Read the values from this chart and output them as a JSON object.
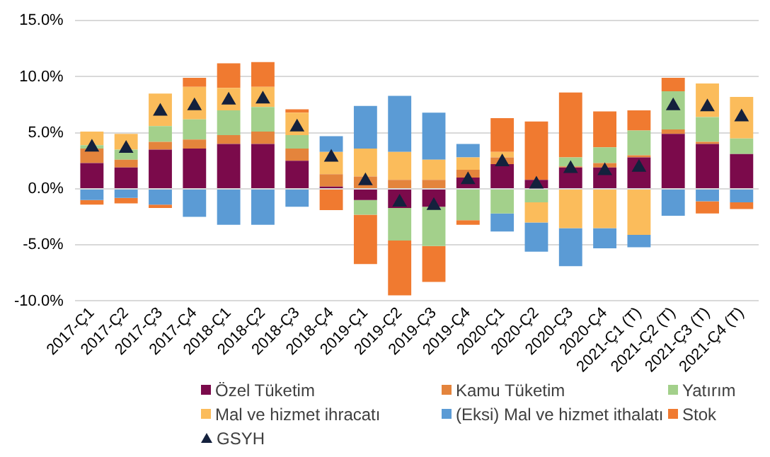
{
  "chart_data": {
    "type": "bar",
    "stacked": true,
    "categories": [
      "2017-Ç1",
      "2017-Ç2",
      "2017-Ç3",
      "2017-Ç4",
      "2018-Ç1",
      "2018-Ç2",
      "2018-Ç3",
      "2018-Ç4",
      "2019-Ç1",
      "2019-Ç2",
      "2019-Ç3",
      "2019-Ç4",
      "2020-Ç1",
      "2020-Ç2",
      "2020-Ç3",
      "2020-Ç4",
      "2021-Ç1 (T)",
      "2021-Ç2 (T)",
      "2021-Ç3 (T)",
      "2021-Ç4 (T)"
    ],
    "series": [
      {
        "name": "Özel Tüketim",
        "color": "#7b0a4b",
        "values": [
          2.3,
          1.9,
          3.5,
          3.6,
          4.0,
          4.0,
          2.5,
          0.2,
          -1.0,
          -1.7,
          -1.6,
          1.0,
          2.2,
          0.8,
          1.9,
          1.9,
          2.8,
          4.9,
          4.0,
          3.1
        ]
      },
      {
        "name": "Kamu Tüketim",
        "color": "#e4843c",
        "values": [
          1.3,
          0.7,
          0.7,
          0.8,
          0.8,
          1.1,
          1.1,
          1.1,
          1.1,
          0.8,
          0.8,
          0.7,
          0.6,
          null,
          0.1,
          0.4,
          0.2,
          0.4,
          0.2,
          null
        ]
      },
      {
        "name": "Yatırım",
        "color": "#a3d08b",
        "values": [
          0.3,
          0.9,
          1.4,
          1.8,
          2.2,
          2.2,
          1.2,
          null,
          -1.3,
          -2.9,
          -3.5,
          -2.8,
          -2.2,
          -1.2,
          0.8,
          1.4,
          2.2,
          3.4,
          2.2,
          1.4
        ]
      },
      {
        "name": "Mal ve hizmet ihracatı",
        "color": "#fbbc5b",
        "values": [
          1.2,
          1.4,
          2.9,
          2.9,
          2.0,
          1.8,
          2.0,
          2.0,
          2.5,
          2.5,
          1.8,
          1.1,
          0.5,
          -1.8,
          -3.5,
          -3.5,
          -4.1,
          null,
          3.0,
          3.7
        ]
      },
      {
        "name": "(Eksi) Mal ve hizmet ithalatı",
        "color": "#5b9bd5",
        "values": [
          -1.0,
          -0.8,
          -1.4,
          -2.5,
          -3.2,
          -3.2,
          -1.6,
          1.4,
          3.8,
          5.0,
          4.2,
          1.2,
          -1.6,
          -2.6,
          -3.4,
          -1.8,
          -1.1,
          -2.4,
          -1.1,
          -1.2
        ]
      },
      {
        "name": "Stok",
        "color": "#f07a30",
        "values": [
          -0.4,
          -0.5,
          -0.3,
          0.8,
          2.2,
          2.2,
          0.3,
          -1.9,
          -4.4,
          -4.9,
          -3.2,
          -0.4,
          3.0,
          5.2,
          5.8,
          3.2,
          1.8,
          1.2,
          -1.1,
          -0.6
        ]
      },
      {
        "name": "GSYH",
        "type": "scatter",
        "color": "#14213d",
        "values": [
          3.7,
          3.6,
          6.9,
          7.4,
          7.9,
          8.0,
          5.5,
          2.8,
          0.7,
          -1.2,
          -1.5,
          0.8,
          2.4,
          0.4,
          1.8,
          1.6,
          1.9,
          7.4,
          7.3,
          6.4
        ]
      }
    ],
    "marker": "triangle",
    "ylim": [
      -10,
      15
    ],
    "yticks": [
      {
        "value": -10,
        "label": "-10.0%"
      },
      {
        "value": -5,
        "label": "-5.0%"
      },
      {
        "value": 0,
        "label": "0.0%"
      },
      {
        "value": 5,
        "label": "5.0%"
      },
      {
        "value": 10,
        "label": "10.0%"
      },
      {
        "value": 15,
        "label": "15.0%"
      }
    ],
    "grid": "y",
    "legend": "bottom"
  }
}
